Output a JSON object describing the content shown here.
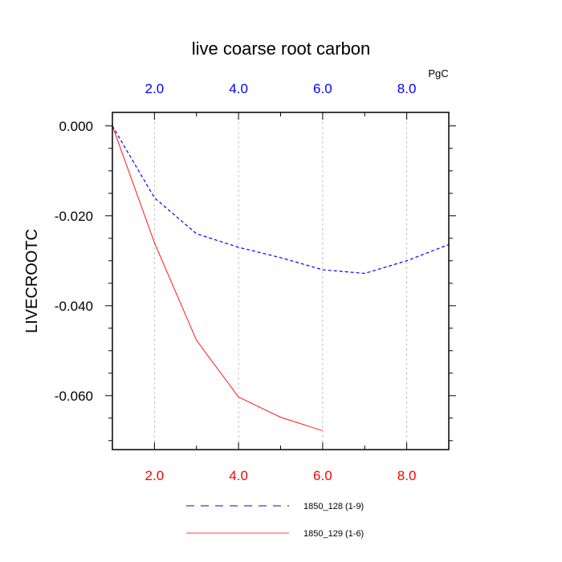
{
  "chart_data": {
    "type": "line",
    "title": "live coarse root carbon",
    "ylabel": "LIVECROOTC",
    "top_axis_unit": "PgC",
    "xlim": [
      1,
      9
    ],
    "ylim": [
      -0.072,
      0.003
    ],
    "x_ticks": [
      2,
      4,
      6,
      8
    ],
    "x_tick_labels": [
      "2.0",
      "4.0",
      "6.0",
      "8.0"
    ],
    "y_ticks": [
      0,
      -0.02,
      -0.04,
      -0.06
    ],
    "y_tick_labels": [
      "0.000",
      "-0.020",
      "-0.040",
      "-0.060"
    ],
    "grid": "vertical dashed at major x ticks",
    "colors": {
      "top_axis": "#0000ff",
      "bottom_axis": "#ff0000"
    },
    "legend_position": "bottom-center",
    "series": [
      {
        "name": "1850_128 (1-9)",
        "color": "#0000ff",
        "dash": "dashed",
        "x": [
          1,
          2,
          3,
          4,
          5,
          6,
          7,
          8,
          9
        ],
        "values": [
          0.0,
          -0.016,
          -0.024,
          -0.027,
          -0.0293,
          -0.032,
          -0.0328,
          -0.03,
          -0.0264
        ]
      },
      {
        "name": "1850_129 (1-6)",
        "color": "#ff0000",
        "dash": "solid",
        "x": [
          1,
          2,
          3,
          4,
          5,
          6
        ],
        "values": [
          0.0,
          -0.026,
          -0.0477,
          -0.0603,
          -0.0648,
          -0.0678
        ]
      }
    ]
  }
}
